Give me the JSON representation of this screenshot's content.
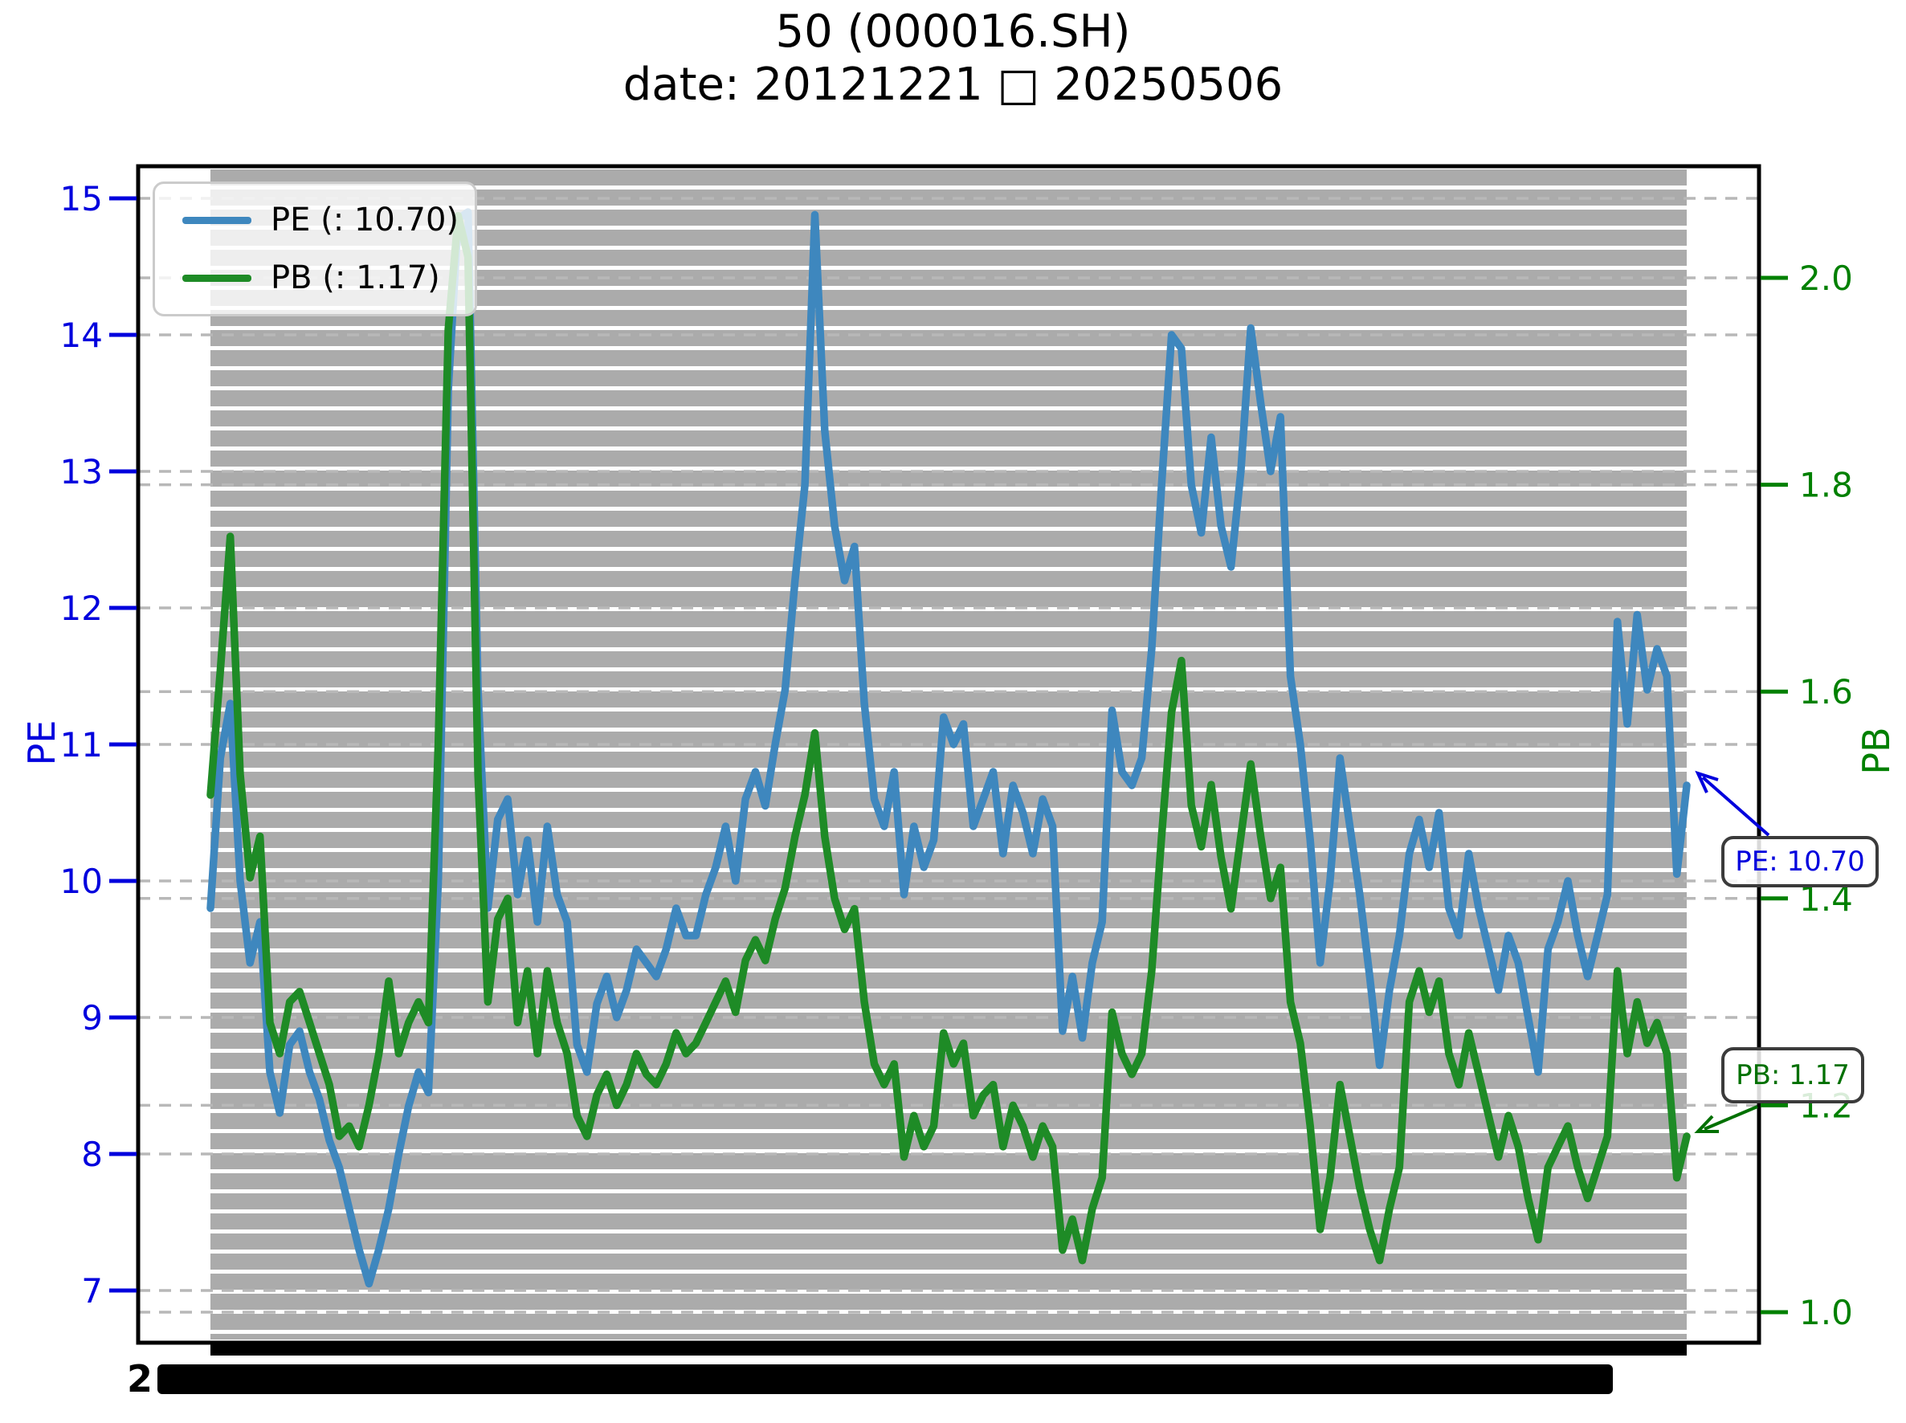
{
  "title": {
    "line1": "50 (000016.SH)",
    "line2": "date: 20121221 □ 20250506"
  },
  "legend": [
    {
      "label": "PE (: 10.70)",
      "color": "#3e87be"
    },
    {
      "label": "PB (: 1.17)",
      "color": "#1e8b26"
    }
  ],
  "axes": {
    "left": {
      "label": "PE",
      "color": "#0000dd",
      "tick_labels": [
        "15",
        "14",
        "13",
        "12",
        "11",
        "10",
        "9",
        "8",
        "7"
      ],
      "tick_values": [
        15,
        14,
        13,
        12,
        11,
        10,
        9,
        8,
        7
      ]
    },
    "right": {
      "label": "PB",
      "color": "#008000",
      "tick_labels": [
        "2.0",
        "1.8",
        "1.6",
        "1.4",
        "1.2",
        "1.0"
      ],
      "tick_values": [
        2.0,
        1.8,
        1.6,
        1.4,
        1.2,
        1.0
      ]
    }
  },
  "annotations": [
    {
      "text": "PE: 10.70",
      "color": "#0000dd"
    },
    {
      "text": "PB: 1.17",
      "color": "#007000"
    }
  ],
  "xaxis": {
    "first_label_fragment": "2"
  },
  "colors": {
    "stripe": "#ababab",
    "grid": "#b8b8b8",
    "frame": "#000000"
  },
  "chart_data": {
    "type": "line",
    "title": "50 (000016.SH)",
    "subtitle": "date: 20121221 □ 20250506",
    "x_start": "20121221",
    "x_end": "20250506",
    "sampling": "monthly",
    "left_ylabel": "PE",
    "right_ylabel": "PB",
    "left_ylim": [
      6.62,
      15.24
    ],
    "right_ylim": [
      0.97,
      2.11
    ],
    "grid": "dashed horizontal at every left and right tick",
    "series": [
      {
        "name": "PE",
        "axis": "left",
        "color": "#3e87be",
        "current": 10.7,
        "values": [
          9.8,
          10.9,
          11.3,
          10.0,
          9.4,
          9.7,
          8.6,
          8.3,
          8.8,
          8.9,
          8.6,
          8.4,
          8.1,
          7.9,
          7.6,
          7.3,
          7.05,
          7.3,
          7.6,
          8.0,
          8.35,
          8.6,
          8.45,
          10.0,
          13.6,
          14.85,
          14.9,
          11.4,
          9.8,
          10.45,
          10.6,
          9.9,
          10.3,
          9.7,
          10.4,
          9.9,
          9.7,
          8.8,
          8.6,
          9.1,
          9.3,
          9.0,
          9.2,
          9.5,
          9.4,
          9.3,
          9.5,
          9.8,
          9.6,
          9.6,
          9.9,
          10.1,
          10.4,
          10.0,
          10.6,
          10.8,
          10.55,
          11.0,
          11.4,
          12.2,
          12.9,
          14.88,
          13.3,
          12.6,
          12.2,
          12.45,
          11.3,
          10.6,
          10.4,
          10.8,
          9.9,
          10.4,
          10.1,
          10.3,
          11.2,
          11.0,
          11.15,
          10.4,
          10.6,
          10.8,
          10.2,
          10.7,
          10.5,
          10.2,
          10.6,
          10.4,
          8.9,
          9.3,
          8.85,
          9.4,
          9.7,
          11.25,
          10.8,
          10.7,
          10.9,
          11.7,
          12.9,
          14.0,
          13.9,
          12.9,
          12.55,
          13.25,
          12.6,
          12.3,
          13.0,
          14.05,
          13.5,
          13.0,
          13.4,
          11.5,
          11.0,
          10.3,
          9.4,
          10.0,
          10.9,
          10.4,
          9.9,
          9.3,
          8.65,
          9.2,
          9.6,
          10.2,
          10.45,
          10.1,
          10.5,
          9.8,
          9.6,
          10.2,
          9.8,
          9.5,
          9.2,
          9.6,
          9.4,
          9.0,
          8.6,
          9.5,
          9.7,
          10.0,
          9.6,
          9.3,
          9.6,
          9.9,
          11.9,
          11.15,
          11.95,
          11.4,
          11.7,
          11.5,
          10.05,
          10.7
        ]
      },
      {
        "name": "PB",
        "axis": "right",
        "color": "#1e8b26",
        "current": 1.17,
        "values": [
          1.5,
          1.62,
          1.75,
          1.52,
          1.42,
          1.46,
          1.28,
          1.25,
          1.3,
          1.31,
          1.28,
          1.25,
          1.22,
          1.17,
          1.18,
          1.16,
          1.2,
          1.25,
          1.32,
          1.25,
          1.28,
          1.3,
          1.28,
          1.55,
          1.95,
          2.06,
          2.02,
          1.52,
          1.3,
          1.38,
          1.4,
          1.28,
          1.33,
          1.25,
          1.33,
          1.28,
          1.25,
          1.19,
          1.17,
          1.21,
          1.23,
          1.2,
          1.22,
          1.25,
          1.23,
          1.22,
          1.24,
          1.27,
          1.25,
          1.26,
          1.28,
          1.3,
          1.32,
          1.29,
          1.34,
          1.36,
          1.34,
          1.38,
          1.41,
          1.46,
          1.5,
          1.56,
          1.46,
          1.4,
          1.37,
          1.39,
          1.3,
          1.24,
          1.22,
          1.24,
          1.15,
          1.19,
          1.16,
          1.18,
          1.27,
          1.24,
          1.26,
          1.19,
          1.21,
          1.22,
          1.16,
          1.2,
          1.18,
          1.15,
          1.18,
          1.16,
          1.06,
          1.09,
          1.05,
          1.1,
          1.13,
          1.29,
          1.25,
          1.23,
          1.25,
          1.33,
          1.46,
          1.58,
          1.63,
          1.49,
          1.45,
          1.51,
          1.44,
          1.39,
          1.46,
          1.53,
          1.46,
          1.4,
          1.43,
          1.3,
          1.26,
          1.18,
          1.08,
          1.13,
          1.22,
          1.17,
          1.12,
          1.08,
          1.05,
          1.1,
          1.14,
          1.3,
          1.33,
          1.29,
          1.32,
          1.25,
          1.22,
          1.27,
          1.23,
          1.19,
          1.15,
          1.19,
          1.16,
          1.11,
          1.07,
          1.14,
          1.16,
          1.18,
          1.14,
          1.11,
          1.14,
          1.17,
          1.33,
          1.25,
          1.3,
          1.26,
          1.28,
          1.25,
          1.13,
          1.17
        ]
      }
    ]
  }
}
